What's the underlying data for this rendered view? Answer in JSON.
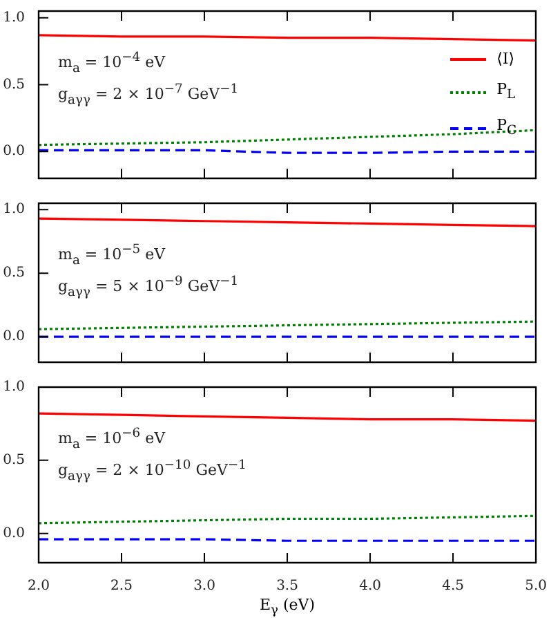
{
  "chart_data": [
    {
      "type": "line",
      "x": [
        2.0,
        2.5,
        3.0,
        3.5,
        4.0,
        4.5,
        5.0
      ],
      "xlim": [
        2.0,
        5.0
      ],
      "ylim": [
        -0.2,
        1.05
      ],
      "xticks": [
        2,
        2.5,
        3,
        3.5,
        4,
        4.5,
        5
      ],
      "yticks": [
        {
          "value": 0,
          "label": "0.0"
        },
        {
          "value": 0.5,
          "label": "0.5"
        },
        {
          "value": 1,
          "label": "1.0"
        }
      ],
      "tick_labels": "y",
      "grid": false,
      "legend": "right",
      "marker": "none",
      "annotations": [
        "m$_{a}$ = 10$^{−4}$ eV",
        "g$_{aγγ}$ = 2 × 10$^{−7}$ GeV$^{−1}$"
      ],
      "series": [
        {
          "name": "⟨I⟩",
          "color": "#ff0000",
          "line_style": "solid",
          "values": [
            0.87,
            0.86,
            0.86,
            0.85,
            0.85,
            0.84,
            0.83
          ]
        },
        {
          "name": "P$_{L}$",
          "color": "#008000",
          "line_style": "dotted",
          "values": [
            0.05,
            0.06,
            0.07,
            0.09,
            0.11,
            0.13,
            0.16
          ]
        },
        {
          "name": "P$_{C}$",
          "color": "#0000ff",
          "line_style": "dashed",
          "values": [
            0.01,
            0.01,
            0.01,
            -0.01,
            -0.01,
            0.0,
            0.0
          ]
        }
      ]
    },
    {
      "type": "line",
      "x": [
        2.0,
        2.5,
        3.0,
        3.5,
        4.0,
        4.5,
        5.0
      ],
      "xlim": [
        2.0,
        5.0
      ],
      "ylim": [
        -0.2,
        1.05
      ],
      "xticks": [
        2,
        2.5,
        3,
        3.5,
        4,
        4.5,
        5
      ],
      "yticks": [
        {
          "value": 0,
          "label": "0.0"
        },
        {
          "value": 0.5,
          "label": "0.5"
        },
        {
          "value": 1,
          "label": "1.0"
        }
      ],
      "tick_labels": "y",
      "grid": false,
      "marker": "none",
      "annotations": [
        "m$_{a}$ = 10$^{−5}$ eV",
        "g$_{aγγ}$ = 5 × 10$^{−9}$ GeV$^{−1}$"
      ],
      "series": [
        {
          "color": "#ff0000",
          "line_style": "solid",
          "values": [
            0.93,
            0.92,
            0.91,
            0.9,
            0.89,
            0.88,
            0.87
          ]
        },
        {
          "color": "#008000",
          "line_style": "dotted",
          "values": [
            0.06,
            0.07,
            0.08,
            0.09,
            0.1,
            0.11,
            0.12
          ]
        },
        {
          "color": "#0000ff",
          "line_style": "dashed",
          "values": [
            0.0,
            0.0,
            0.0,
            0.0,
            0.0,
            0.0,
            0.0
          ]
        }
      ]
    },
    {
      "type": "line",
      "x": [
        2.0,
        2.5,
        3.0,
        3.5,
        4.0,
        4.5,
        5.0
      ],
      "xlim": [
        2.0,
        5.0
      ],
      "ylim": [
        -0.2,
        1.0
      ],
      "xticks": [
        {
          "value": 2,
          "label": "2.0"
        },
        {
          "value": 2.5,
          "label": "2.5"
        },
        {
          "value": 3,
          "label": "3.0"
        },
        {
          "value": 3.5,
          "label": "3.5"
        },
        {
          "value": 4,
          "label": "4.0"
        },
        {
          "value": 4.5,
          "label": "4.5"
        },
        {
          "value": 5,
          "label": "5.0"
        }
      ],
      "yticks": [
        {
          "value": 0,
          "label": "0.0"
        },
        {
          "value": 0.5,
          "label": "0.5"
        },
        {
          "value": 1,
          "label": "1.0"
        }
      ],
      "xlabel": "E$_{γ}$ (eV)",
      "grid": false,
      "marker": "none",
      "annotations": [
        "m$_{a}$ = 10$^{−6}$ eV",
        "g$_{aγγ}$ = 2 × 10$^{−10}$ GeV$^{−1}$"
      ],
      "series": [
        {
          "color": "#ff0000",
          "line_style": "solid",
          "values": [
            0.82,
            0.81,
            0.8,
            0.79,
            0.78,
            0.78,
            0.77
          ]
        },
        {
          "color": "#008000",
          "line_style": "dotted",
          "values": [
            0.07,
            0.08,
            0.09,
            0.1,
            0.1,
            0.11,
            0.12
          ]
        },
        {
          "color": "#0000ff",
          "line_style": "dashed",
          "values": [
            -0.04,
            -0.04,
            -0.04,
            -0.05,
            -0.05,
            -0.05,
            -0.05
          ]
        }
      ]
    }
  ]
}
